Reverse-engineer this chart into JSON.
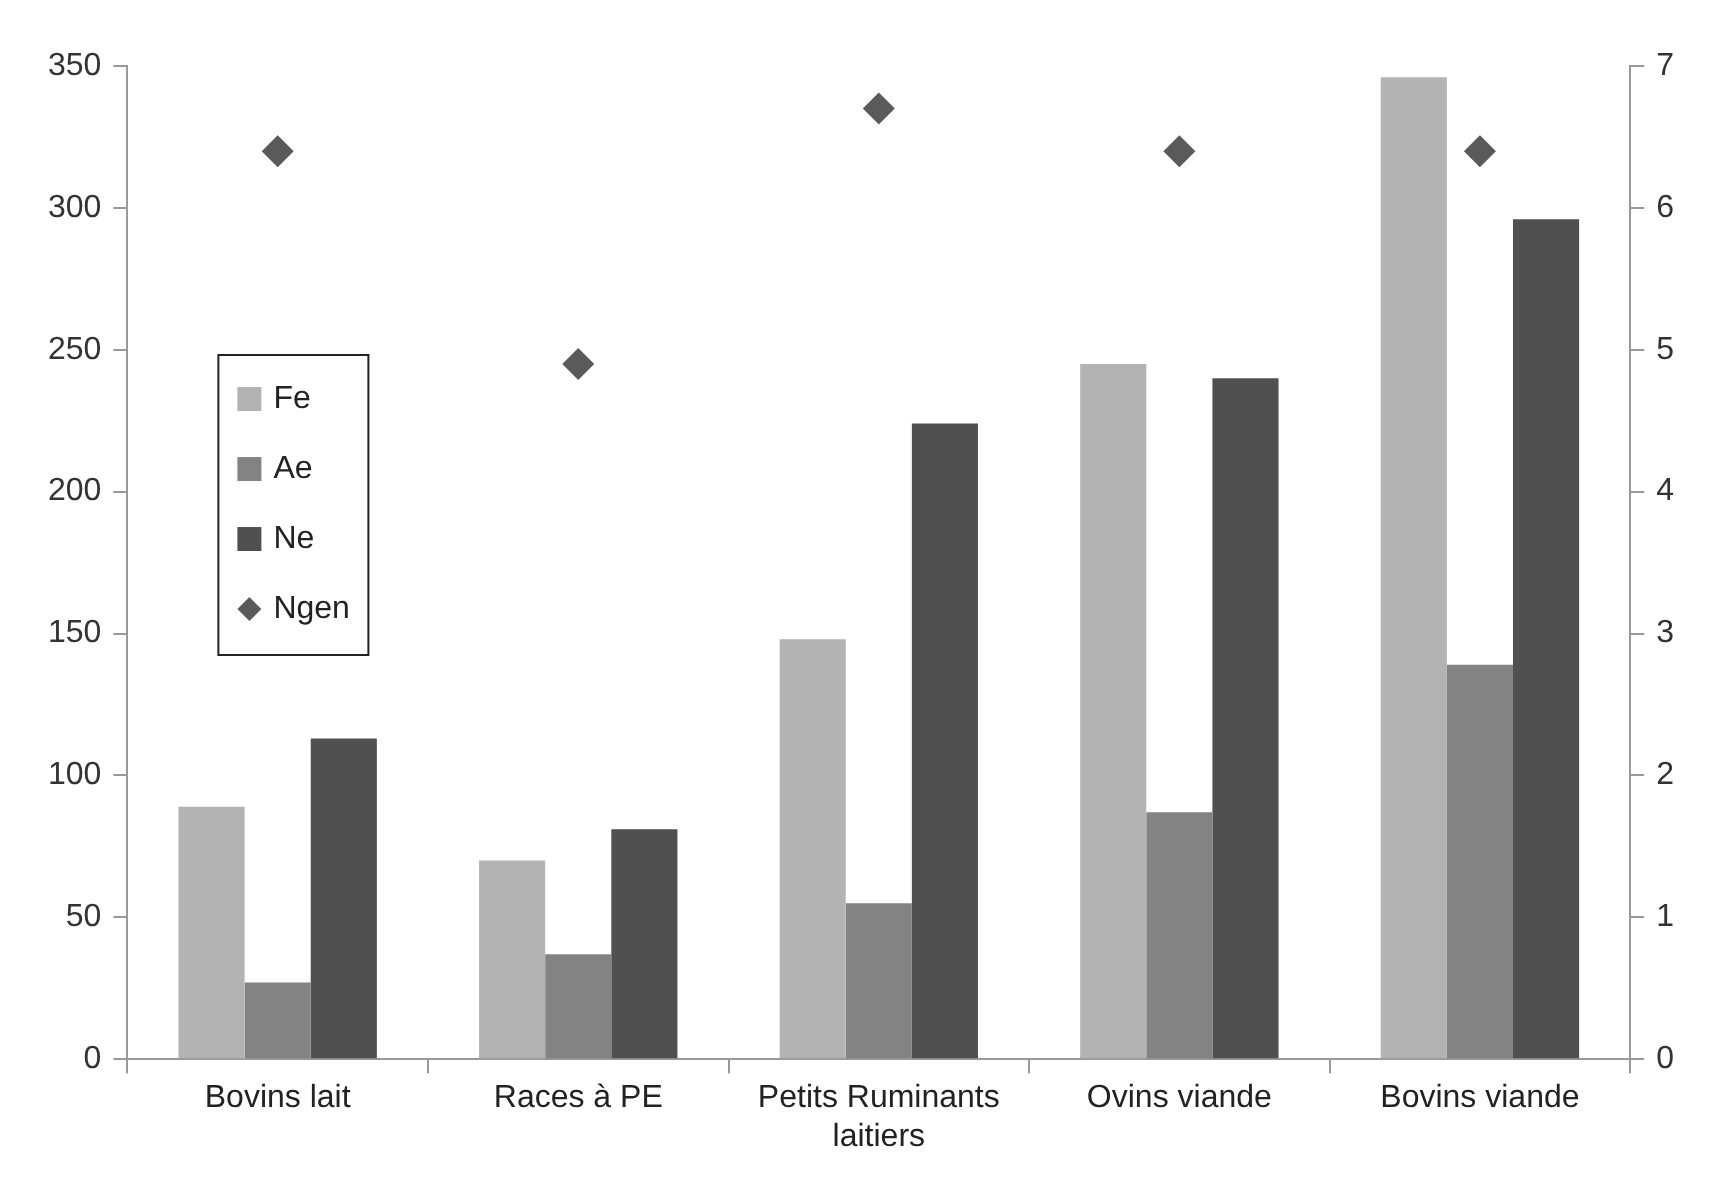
{
  "chart_data": {
    "type": "bar",
    "categories": [
      "Bovins lait",
      "Races à PE",
      "Petits Ruminants laitiers",
      "Ovins viande",
      "Bovins viande"
    ],
    "series": [
      {
        "name": "Fe",
        "color": "#b3b3b3",
        "values": [
          89,
          70,
          148,
          245,
          346
        ]
      },
      {
        "name": "Ae",
        "color": "#838383",
        "values": [
          27,
          37,
          55,
          87,
          139
        ]
      },
      {
        "name": "Ne",
        "color": "#505050",
        "values": [
          113,
          81,
          224,
          240,
          296
        ]
      },
      {
        "name": "Ngen",
        "color": "#5a5a5a",
        "type": "scatter",
        "axis": "y2",
        "marker": "diamond",
        "x": [
          "Bovins lait",
          "Races à PE",
          "Petits Ruminants laitiers",
          "Ovins viande",
          "Bovins viande"
        ],
        "values": [
          6.4,
          4.9,
          6.7,
          6.4,
          6.4
        ]
      }
    ],
    "ylim": [
      0,
      350
    ],
    "yticks": [
      0,
      50,
      100,
      150,
      200,
      250,
      300,
      350
    ],
    "y2lim": [
      0,
      7
    ],
    "y2ticks": [
      0,
      1,
      2,
      3,
      4,
      5,
      6,
      7
    ],
    "grid": false,
    "legend": "left"
  }
}
